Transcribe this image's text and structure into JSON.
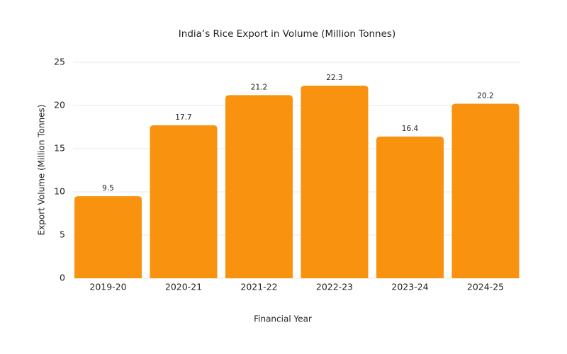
{
  "chart_data": {
    "type": "bar",
    "title": "India’s Rice Export in Volume (Million Tonnes)",
    "x_label": "Financial Year",
    "y_label": "Export Volume (Million Tonnes)",
    "categories": [
      "2019-20",
      "2020-21",
      "2021-22",
      "2022-23",
      "2023-24",
      "2024-25"
    ],
    "values": [
      9.5,
      17.7,
      21.2,
      22.3,
      16.4,
      20.2
    ],
    "color": "#f8920f",
    "ylim": [
      0,
      25
    ],
    "yticks": [
      0,
      5,
      10,
      15,
      20,
      25
    ],
    "grid": true
  }
}
